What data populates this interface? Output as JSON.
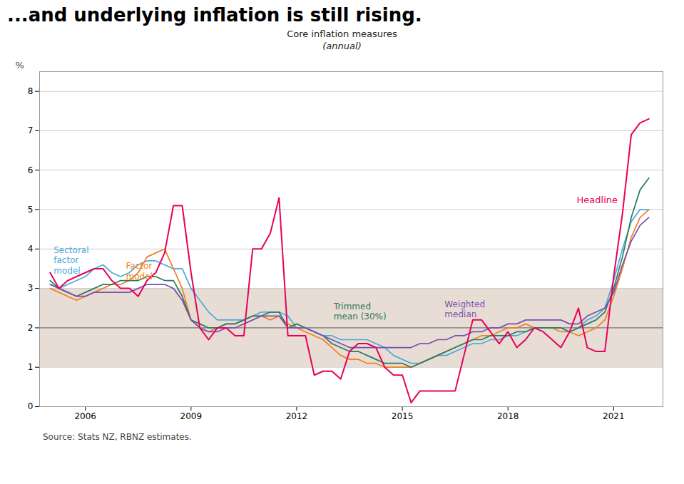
{
  "chart_data": {
    "type": "line",
    "title": "...and underlying inflation is still rising.",
    "subtitle": [
      "Core inflation measures",
      "(annual)"
    ],
    "ylabel": "%",
    "source": "Source: Stats NZ, RBNZ estimates.",
    "xlim": [
      2004.7,
      2022.4
    ],
    "xticks": [
      2006,
      2009,
      2012,
      2015,
      2018,
      2021
    ],
    "ylim": [
      0,
      8.5
    ],
    "yticks": [
      0,
      1,
      2,
      3,
      4,
      5,
      6,
      7,
      8
    ],
    "grid": true,
    "band": {
      "values": [
        1.0,
        3.0
      ],
      "color": "#E8DDD5"
    },
    "reference_line": {
      "value": 2.0,
      "color": "#555555"
    },
    "x": [
      2005.0,
      2005.25,
      2005.5,
      2005.75,
      2006.0,
      2006.25,
      2006.5,
      2006.75,
      2007.0,
      2007.25,
      2007.5,
      2007.75,
      2008.0,
      2008.25,
      2008.5,
      2008.75,
      2009.0,
      2009.25,
      2009.5,
      2009.75,
      2010.0,
      2010.25,
      2010.5,
      2010.75,
      2011.0,
      2011.25,
      2011.5,
      2011.75,
      2012.0,
      2012.25,
      2012.5,
      2012.75,
      2013.0,
      2013.25,
      2013.5,
      2013.75,
      2014.0,
      2014.25,
      2014.5,
      2014.75,
      2015.0,
      2015.25,
      2015.5,
      2015.75,
      2016.0,
      2016.25,
      2016.5,
      2016.75,
      2017.0,
      2017.25,
      2017.5,
      2017.75,
      2018.0,
      2018.25,
      2018.5,
      2018.75,
      2019.0,
      2019.25,
      2019.5,
      2019.75,
      2020.0,
      2020.25,
      2020.5,
      2020.75,
      2021.0,
      2021.25,
      2021.5,
      2021.75,
      2022.0
    ],
    "series": [
      {
        "name": "Sectoral\nfactor\nmodel",
        "color": "#4BAADB",
        "values": [
          3.1,
          3.0,
          3.1,
          3.2,
          3.3,
          3.5,
          3.6,
          3.4,
          3.3,
          3.4,
          3.6,
          3.7,
          3.7,
          3.6,
          3.5,
          3.5,
          3.0,
          2.7,
          2.4,
          2.2,
          2.2,
          2.2,
          2.2,
          2.3,
          2.4,
          2.4,
          2.4,
          2.3,
          2.0,
          2.0,
          1.9,
          1.8,
          1.8,
          1.7,
          1.7,
          1.7,
          1.7,
          1.6,
          1.5,
          1.3,
          1.2,
          1.1,
          1.1,
          1.2,
          1.3,
          1.3,
          1.4,
          1.5,
          1.6,
          1.6,
          1.7,
          1.7,
          1.8,
          1.8,
          1.9,
          2.0,
          2.0,
          2.0,
          2.0,
          1.9,
          2.0,
          2.2,
          2.3,
          2.5,
          3.2,
          4.0,
          4.7,
          5.0,
          5.0
        ]
      },
      {
        "name": "Factor\nmodel",
        "color": "#F08020",
        "values": [
          3.0,
          2.9,
          2.8,
          2.7,
          2.8,
          2.9,
          3.0,
          3.1,
          3.1,
          3.2,
          3.4,
          3.8,
          3.9,
          4.0,
          3.5,
          3.0,
          2.2,
          2.0,
          1.9,
          2.0,
          2.1,
          2.1,
          2.2,
          2.3,
          2.3,
          2.2,
          2.3,
          2.1,
          2.0,
          1.9,
          1.8,
          1.7,
          1.5,
          1.3,
          1.2,
          1.2,
          1.1,
          1.1,
          1.0,
          1.0,
          1.0,
          1.0,
          1.1,
          1.2,
          1.3,
          1.4,
          1.5,
          1.6,
          1.7,
          1.8,
          1.8,
          1.9,
          2.0,
          2.0,
          2.1,
          2.0,
          2.0,
          2.0,
          1.9,
          1.9,
          1.8,
          1.9,
          2.0,
          2.2,
          2.8,
          3.5,
          4.3,
          4.8,
          5.0
        ]
      },
      {
        "name": "Trimmed\nmean (30%)",
        "color": "#2A7B5E",
        "values": [
          3.2,
          3.0,
          2.9,
          2.8,
          2.9,
          3.0,
          3.1,
          3.1,
          3.2,
          3.2,
          3.2,
          3.3,
          3.3,
          3.2,
          3.2,
          2.8,
          2.2,
          2.1,
          2.0,
          2.0,
          2.1,
          2.1,
          2.2,
          2.3,
          2.3,
          2.4,
          2.4,
          2.0,
          2.1,
          2.0,
          1.9,
          1.8,
          1.6,
          1.5,
          1.4,
          1.4,
          1.3,
          1.2,
          1.1,
          1.1,
          1.1,
          1.0,
          1.1,
          1.2,
          1.3,
          1.4,
          1.5,
          1.6,
          1.7,
          1.7,
          1.8,
          1.8,
          1.8,
          1.9,
          1.9,
          2.0,
          2.0,
          2.0,
          2.0,
          1.9,
          2.0,
          2.1,
          2.2,
          2.4,
          3.0,
          3.8,
          4.8,
          5.5,
          5.8
        ]
      },
      {
        "name": "Weighted\nmedian",
        "color": "#7B4FAF",
        "values": [
          3.1,
          3.0,
          2.9,
          2.8,
          2.8,
          2.9,
          2.9,
          2.9,
          2.9,
          2.9,
          3.0,
          3.1,
          3.1,
          3.1,
          3.0,
          2.7,
          2.2,
          2.0,
          1.9,
          1.9,
          2.0,
          2.0,
          2.1,
          2.2,
          2.3,
          2.3,
          2.3,
          2.0,
          2.0,
          2.0,
          1.9,
          1.8,
          1.7,
          1.6,
          1.5,
          1.5,
          1.5,
          1.5,
          1.5,
          1.5,
          1.5,
          1.5,
          1.6,
          1.6,
          1.7,
          1.7,
          1.8,
          1.8,
          1.9,
          1.9,
          2.0,
          2.0,
          2.1,
          2.1,
          2.2,
          2.2,
          2.2,
          2.2,
          2.2,
          2.1,
          2.1,
          2.3,
          2.4,
          2.5,
          2.9,
          3.6,
          4.2,
          4.6,
          4.8
        ]
      },
      {
        "name": "Headline",
        "color": "#E8005A",
        "values": [
          3.4,
          3.0,
          3.2,
          3.3,
          3.4,
          3.5,
          3.5,
          3.2,
          3.0,
          3.0,
          2.8,
          3.2,
          3.4,
          3.9,
          5.1,
          5.1,
          3.4,
          2.0,
          1.7,
          2.0,
          2.0,
          1.8,
          1.8,
          4.0,
          4.0,
          4.4,
          5.3,
          1.8,
          1.8,
          1.8,
          0.8,
          0.9,
          0.9,
          0.7,
          1.4,
          1.6,
          1.6,
          1.5,
          1.0,
          0.8,
          0.8,
          0.1,
          0.4,
          0.4,
          0.4,
          0.4,
          0.4,
          1.3,
          2.2,
          2.2,
          1.9,
          1.6,
          1.9,
          1.5,
          1.7,
          2.0,
          1.9,
          1.7,
          1.5,
          1.9,
          2.5,
          1.5,
          1.4,
          1.4,
          3.3,
          4.9,
          6.9,
          7.2,
          7.3
        ]
      }
    ],
    "annotations": [
      {
        "text": "Sectoral\nfactor\nmodel",
        "x": 2005.1,
        "y": 3.72,
        "color": "#4BAADB"
      },
      {
        "text": "Factor\nmodel",
        "x": 2007.15,
        "y": 3.45,
        "color": "#F08020"
      },
      {
        "text": "Trimmed\nmean (30%)",
        "x": 2013.05,
        "y": 2.42,
        "color": "#2A7B5E"
      },
      {
        "text": "Weighted\nmedian",
        "x": 2016.2,
        "y": 2.48,
        "color": "#7B4FAF"
      },
      {
        "text": "Headline",
        "x": 2019.95,
        "y": 5.25,
        "color": "#E8005A"
      }
    ]
  }
}
